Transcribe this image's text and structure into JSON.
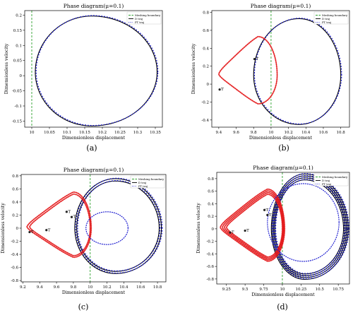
{
  "figure": {
    "panels": [
      {
        "caption": "(a)"
      },
      {
        "caption": "(b)"
      },
      {
        "caption": "(c)"
      },
      {
        "caption": "(d)"
      }
    ]
  },
  "colors": {
    "meshing_boundary": "#2ca02c",
    "d_traj": "#000000",
    "pt_traj": "#1f1fd0",
    "red_branch": "#e41a1c",
    "frame": "#000000"
  },
  "chart_data": [
    {
      "type": "line",
      "title": "Phase diagram(μ=0.1)",
      "xlabel": "Dimensionless displacement",
      "ylabel": "Dimensionless velocity",
      "caption": "(a)",
      "xlim": [
        9.98,
        10.37
      ],
      "ylim": [
        -0.17,
        0.215
      ],
      "xticks": [
        10,
        10.05,
        10.1,
        10.15,
        10.2,
        10.25,
        10.3,
        10.35
      ],
      "xtick_labels": [
        "10",
        "10.05",
        "10.1",
        "10.15",
        "10.2",
        "10.25",
        "10.3",
        "10.35"
      ],
      "yticks": [
        -0.15,
        -0.1,
        -0.05,
        0,
        0.05,
        0.1,
        0.15,
        0.2
      ],
      "ytick_labels": [
        "-0.15",
        "-0.1",
        "-0.05",
        "0",
        "0.05",
        "0.1",
        "0.15",
        "0.2"
      ],
      "meshing_boundary_x": 10,
      "legend": {
        "position": "top-right",
        "entries": [
          "Meshing boundary",
          "D traj",
          "PT traj"
        ]
      },
      "orbits": [
        {
          "kind": "main",
          "cx": 10.17,
          "cy": 0.012,
          "rx_left": 0.16,
          "rx_right": 0.185,
          "ry_top": 0.185,
          "ry_bottom": 0.178,
          "skew": 0.0,
          "turns": 1,
          "dr": 0,
          "red_fraction": 0.18
        }
      ],
      "markers": [],
      "pt_dotted": []
    },
    {
      "type": "line",
      "title": "Phase diagram(μ=0.1)",
      "xlabel": "Dimensionless displacement",
      "ylabel": "Dimensionless velocity",
      "caption": "(b)",
      "xlim": [
        9.32,
        10.9
      ],
      "ylim": [
        -0.48,
        0.82
      ],
      "xticks": [
        9.4,
        9.6,
        9.8,
        10,
        10.2,
        10.4,
        10.6,
        10.8
      ],
      "xtick_labels": [
        "9.4",
        "9.6",
        "9.8",
        "10",
        "10.2",
        "10.4",
        "10.6",
        "10.8"
      ],
      "yticks": [
        -0.4,
        -0.2,
        0,
        0.2,
        0.4,
        0.6,
        0.8
      ],
      "ytick_labels": [
        "-0.4",
        "-0.2",
        "0",
        "0.2",
        "0.4",
        "0.6",
        "0.8"
      ],
      "meshing_boundary_x": 10,
      "legend": {
        "position": "top-right",
        "entries": [
          "Meshing boundary",
          "D traj",
          "PT traj"
        ]
      },
      "orbits": [
        {
          "kind": "main",
          "cx": 10.32,
          "cy": 0.1,
          "rx_left": 0.52,
          "rx_right": 0.48,
          "ry_top": 0.63,
          "ry_bottom": 0.55,
          "skew": 0.0,
          "turns": 1,
          "dr": 0,
          "red_fraction": 0.0
        },
        {
          "kind": "loop",
          "cx": 9.85,
          "cy": 0.1,
          "rx_left": 0.45,
          "rx_right": 0.22,
          "ry_top": 0.43,
          "ry_bottom": 0.32,
          "skew": 0.15,
          "turns": 1,
          "dr": 0,
          "red_fraction": 1.0
        }
      ],
      "markers": [
        {
          "label": "T",
          "x": 9.81,
          "y": 0.28
        },
        {
          "label": "T",
          "x": 9.41,
          "y": -0.06
        }
      ],
      "pt_dotted": []
    },
    {
      "type": "line",
      "title": "Phase diagram(μ=0.1)",
      "xlabel": "Dimensionless displacement",
      "ylabel": "Dimensionless velocity",
      "caption": "(c)",
      "xlim": [
        9.18,
        10.9
      ],
      "ylim": [
        -0.82,
        0.82
      ],
      "xticks": [
        9.2,
        9.4,
        9.6,
        9.8,
        10,
        10.2,
        10.4,
        10.6,
        10.8
      ],
      "xtick_labels": [
        "9.2",
        "9.4",
        "9.6",
        "9.8",
        "10",
        "10.2",
        "10.4",
        "10.6",
        "10.8"
      ],
      "yticks": [
        -0.8,
        -0.6,
        -0.4,
        -0.2,
        0,
        0.2,
        0.4,
        0.6,
        0.8
      ],
      "ytick_labels": [
        "-0.8",
        "-0.6",
        "-0.4",
        "-0.2",
        "0",
        "0.2",
        "0.4",
        "0.6",
        "0.8"
      ],
      "meshing_boundary_x": 10,
      "legend": {
        "position": "top-right",
        "entries": [
          "Meshing boundary",
          "D traj",
          "PT traj"
        ]
      },
      "orbits": [
        {
          "kind": "main",
          "cx": 10.3,
          "cy": 0.0,
          "rx_left": 0.46,
          "rx_right": 0.52,
          "ry_top": 0.72,
          "ry_bottom": 0.66,
          "skew": 0.0,
          "turns": 2,
          "dr": 0.05,
          "red_fraction": 0.0
        },
        {
          "kind": "loop",
          "cx": 9.8,
          "cy": 0.0,
          "rx_left": 0.52,
          "rx_right": 0.2,
          "ry_top": 0.52,
          "ry_bottom": 0.42,
          "skew": 0.2,
          "turns": 2,
          "dr": 0.06,
          "red_fraction": 1.0
        }
      ],
      "markers": [
        {
          "label": "T",
          "x": 9.72,
          "y": 0.25
        },
        {
          "label": "T",
          "x": 9.78,
          "y": 0.17
        },
        {
          "label": "T",
          "x": 9.48,
          "y": -0.03
        },
        {
          "label": "T",
          "x": 9.28,
          "y": -0.06
        }
      ],
      "pt_dotted": [
        {
          "cx": 10.2,
          "cy": 0.0,
          "rx": 0.25,
          "ry": 0.25
        }
      ]
    },
    {
      "type": "line",
      "title": "Phase diagram(μ=0.1)",
      "xlabel": "Dimensionless displacement",
      "ylabel": "Dimensionless velocity",
      "caption": "(d)",
      "xlim": [
        9.12,
        10.9
      ],
      "ylim": [
        -0.88,
        0.9
      ],
      "xticks": [
        9.25,
        9.5,
        9.75,
        10,
        10.25,
        10.5,
        10.75
      ],
      "xtick_labels": [
        "9.25",
        "9.5",
        "9.75",
        "10",
        "10.25",
        "10.5",
        "10.75"
      ],
      "yticks": [
        -0.8,
        -0.6,
        -0.4,
        -0.2,
        0,
        0.2,
        0.4,
        0.6,
        0.8
      ],
      "ytick_labels": [
        "-0.8",
        "-0.6",
        "-0.4",
        "-0.2",
        "0",
        "0.2",
        "0.4",
        "0.6",
        "0.8"
      ],
      "meshing_boundary_x": 10,
      "legend": {
        "position": "top-right",
        "entries": [
          "Meshing boundary",
          "D traj",
          "PT traj"
        ]
      },
      "orbits": [
        {
          "kind": "main",
          "cx": 10.3,
          "cy": 0.0,
          "rx_left": 0.4,
          "rx_right": 0.52,
          "ry_top": 0.78,
          "ry_bottom": 0.72,
          "skew": 0.0,
          "turns": 4,
          "dr": 0.04,
          "red_fraction": 0.0
        },
        {
          "kind": "loop",
          "cx": 9.8,
          "cy": 0.0,
          "rx_left": 0.55,
          "rx_right": 0.2,
          "ry_top": 0.55,
          "ry_bottom": 0.45,
          "skew": 0.2,
          "turns": 4,
          "dr": 0.05,
          "red_fraction": 1.0
        }
      ],
      "markers": [
        {
          "label": "T",
          "x": 9.76,
          "y": 0.3
        },
        {
          "label": "T",
          "x": 9.8,
          "y": 0.22
        },
        {
          "label": "T",
          "x": 9.5,
          "y": -0.03
        },
        {
          "label": "T",
          "x": 9.3,
          "y": -0.06
        }
      ],
      "pt_dotted": [
        {
          "cx": 10.28,
          "cy": 0.1,
          "rx": 0.48,
          "ry": 0.62
        }
      ]
    }
  ]
}
